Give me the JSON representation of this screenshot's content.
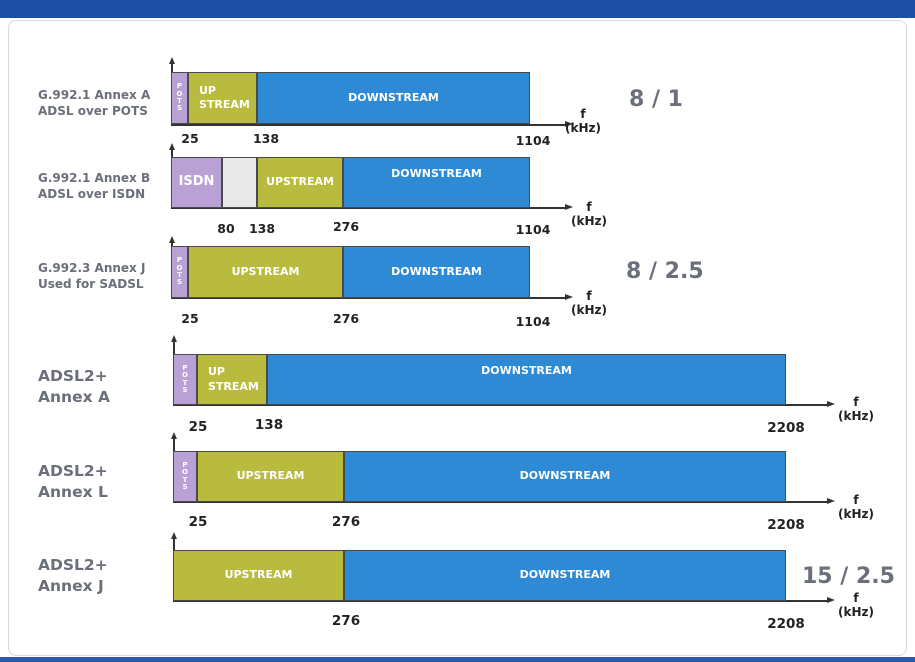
{
  "axis_unit": {
    "f": "f",
    "khz": "(kHz)"
  },
  "pots_letters": [
    "P",
    "O",
    "T",
    "S"
  ],
  "rows": [
    {
      "label_line1": "G.992.1 Annex A",
      "label_line2": "ADSL over POTS",
      "bands": {
        "up": "UP STREAM",
        "down": "DOWNSTREAM"
      },
      "ticks": [
        "25",
        "138",
        "1104"
      ],
      "ratio": "8 / 1"
    },
    {
      "label_line1": "G.992.1 Annex B",
      "label_line2": "ADSL over ISDN",
      "bands": {
        "isdn": "ISDN",
        "up": "UPSTREAM",
        "down": "DOWNSTREAM"
      },
      "ticks": [
        "80",
        "138",
        "276",
        "1104"
      ]
    },
    {
      "label_line1": "G.992.3 Annex J",
      "label_line2": "Used for SADSL",
      "bands": {
        "up": "UPSTREAM",
        "down": "DOWNSTREAM"
      },
      "ticks": [
        "25",
        "276",
        "1104"
      ],
      "ratio": "8 / 2.5"
    },
    {
      "label_line1": "ADSL2+",
      "label_line2": "Annex A",
      "bands": {
        "up": "UP STREAM",
        "down": "DOWNSTREAM"
      },
      "ticks": [
        "25",
        "138",
        "2208"
      ]
    },
    {
      "label_line1": "ADSL2+",
      "label_line2": "Annex L",
      "bands": {
        "up": "UPSTREAM",
        "down": "DOWNSTREAM"
      },
      "ticks": [
        "25",
        "276",
        "2208"
      ]
    },
    {
      "label_line1": "ADSL2+",
      "label_line2": "Annex J",
      "bands": {
        "up": "UPSTREAM",
        "down": "DOWNSTREAM"
      },
      "ticks": [
        "276",
        "2208"
      ],
      "ratio": "15 / 2.5"
    }
  ],
  "colors": {
    "pots": "#b9a1d6",
    "upstream": "#b9bb3e",
    "downstream": "#2e8ad4",
    "gap": "#e9e9e9",
    "header_bar": "#1f4fa5"
  }
}
